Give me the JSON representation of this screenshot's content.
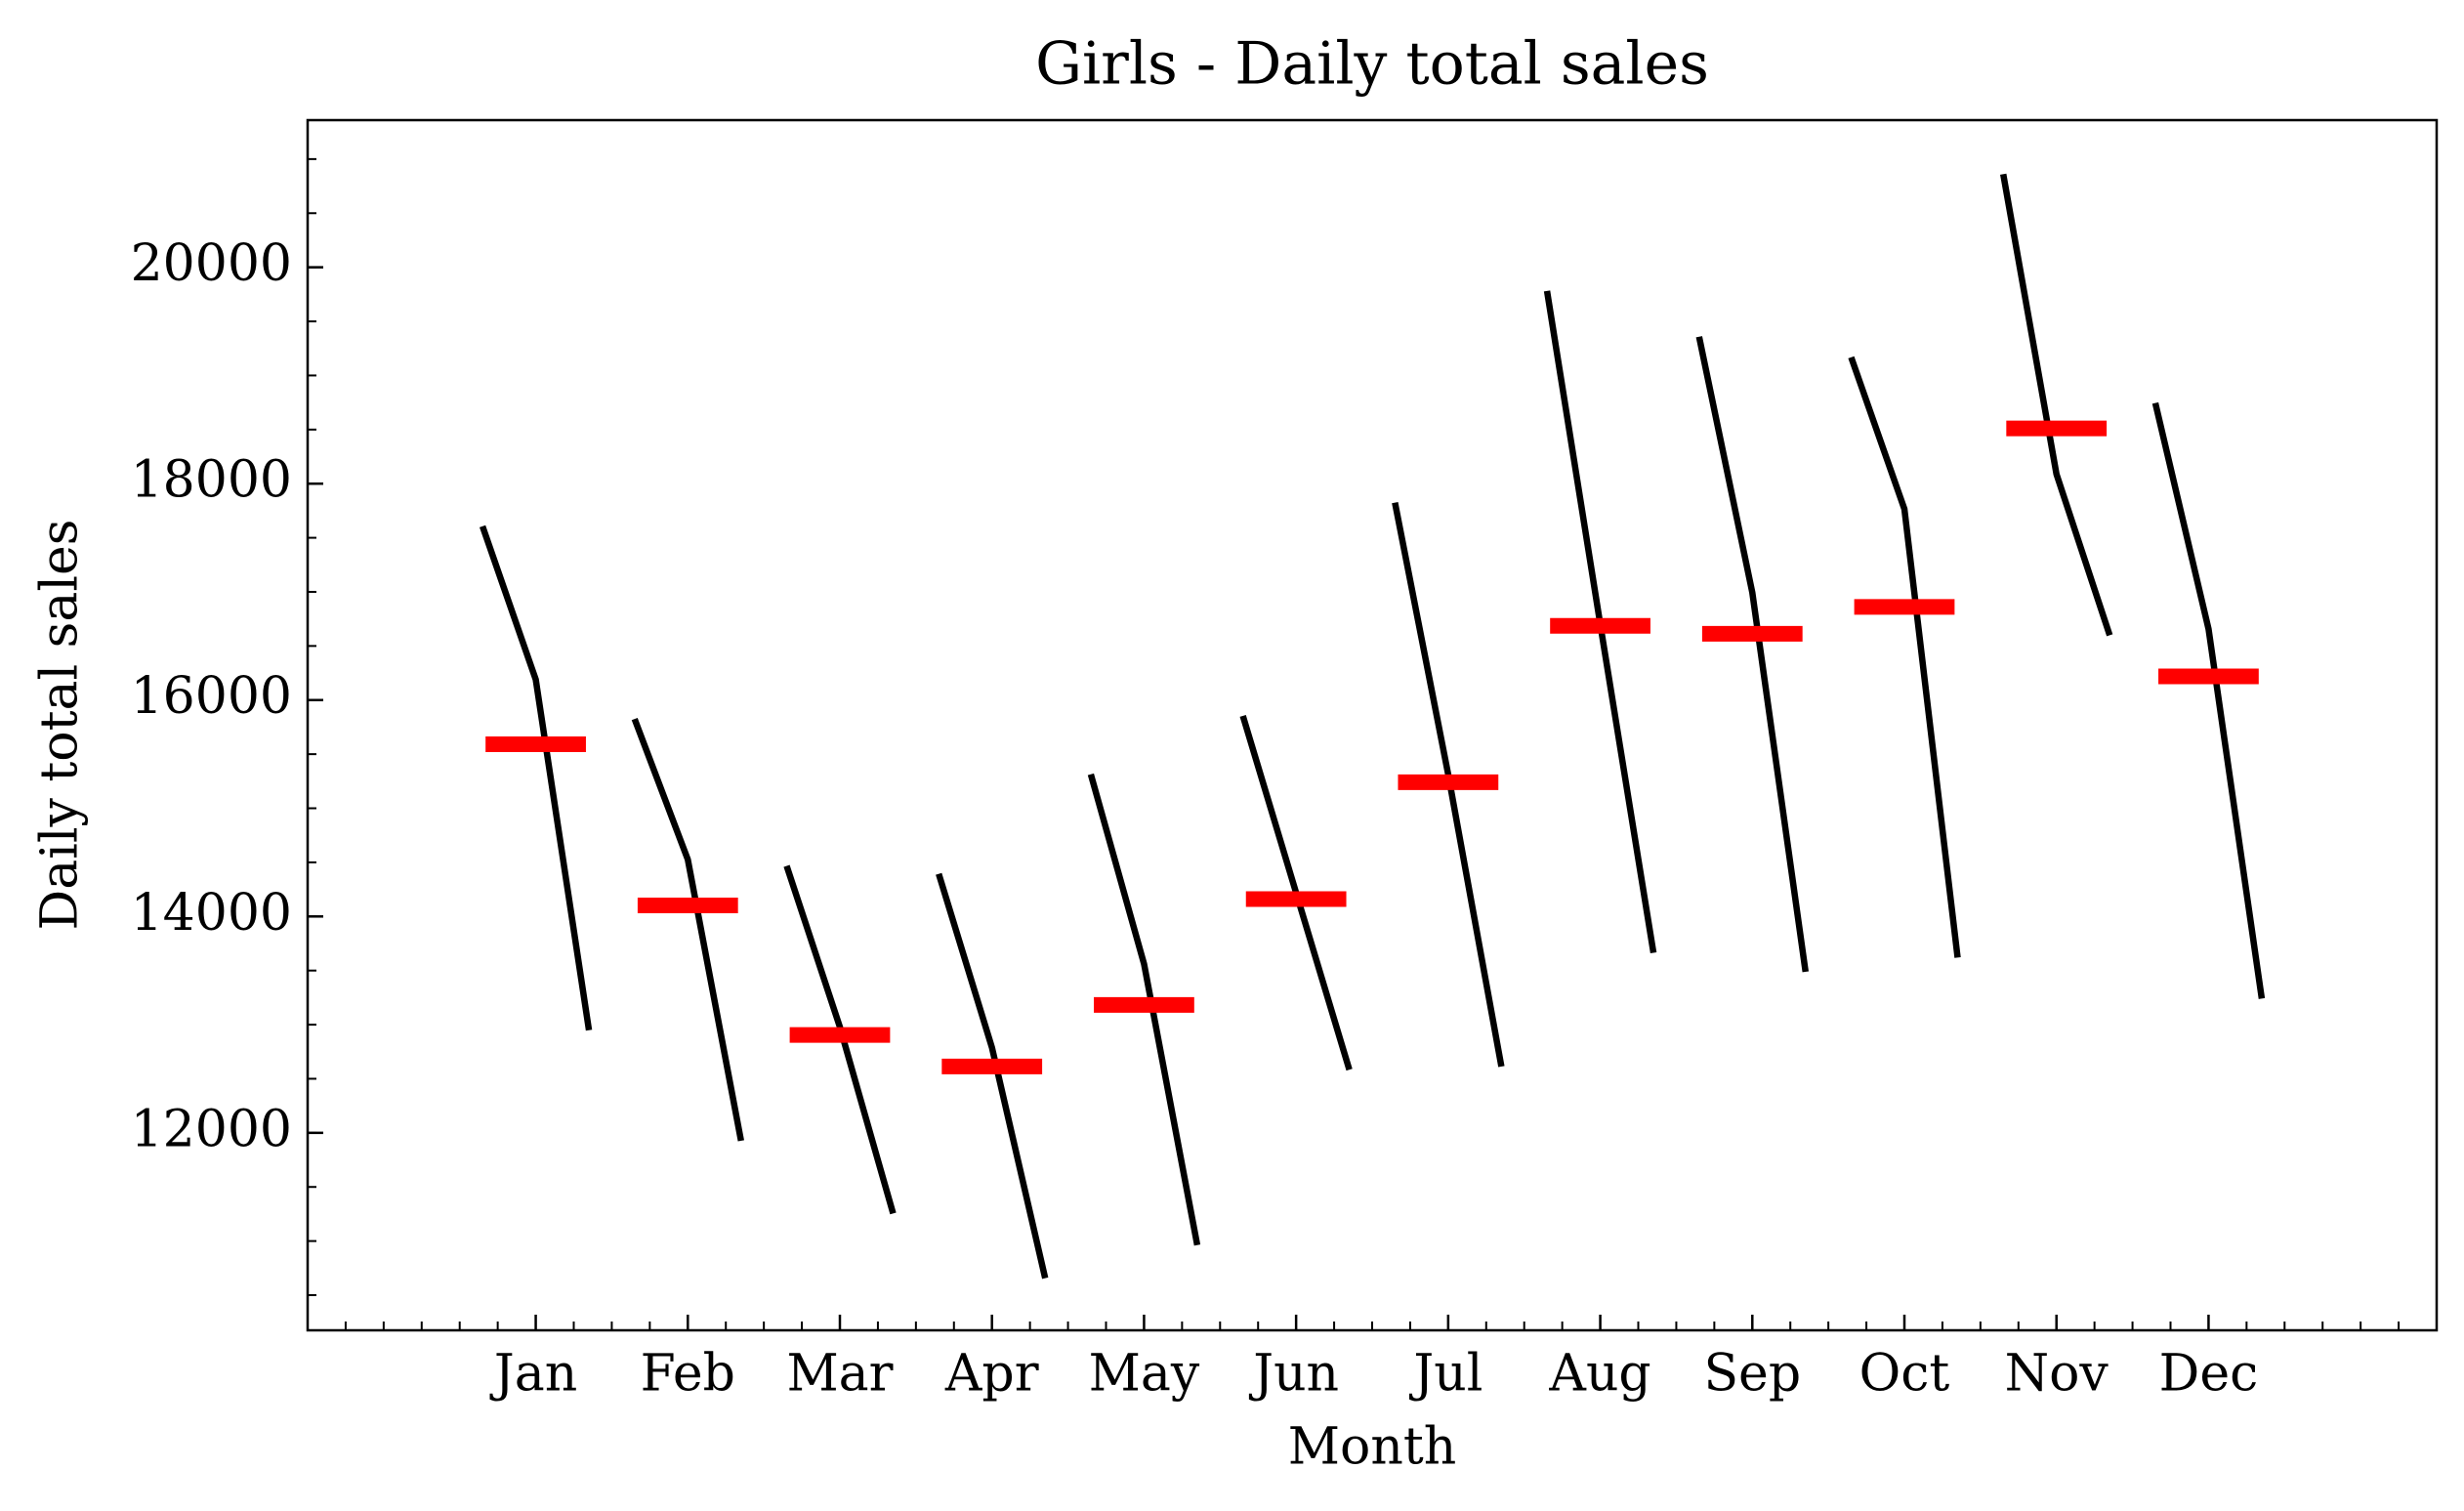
{
  "chart_data": {
    "type": "month_plot",
    "title": "Girls - Daily total sales",
    "x_label": "Month",
    "y_label": "Daily total sales",
    "categories": [
      "Jan",
      "Feb",
      "Mar",
      "Apr",
      "May",
      "Jun",
      "Jul",
      "Aug",
      "Sep",
      "Oct",
      "Nov",
      "Dec"
    ],
    "values": [
      [
        17606,
        16190,
        12949
      ],
      [
        15825,
        14526,
        11927
      ],
      [
        14467,
        12978,
        11255
      ],
      [
        14394,
        12788,
        10657
      ],
      [
        15314,
        13562,
        10963
      ],
      [
        15854,
        14219,
        12584
      ],
      [
        17825,
        15314,
        12613
      ],
      [
        19781,
        16701,
        13664
      ],
      [
        19358,
        16993,
        13489
      ],
      [
        19168,
        17766,
        13620
      ],
      [
        20861,
        18088,
        16599
      ],
      [
        18745,
        16657,
        13241
      ]
    ],
    "means": [
      15591,
      14102,
      12905,
      12613,
      13182,
      14161,
      15241,
      16686,
      16613,
      16861,
      18511,
      16219
    ],
    "color": "#000000",
    "mean_color": "#ff0000",
    "xlim": [
      -1.5,
      12.5
    ],
    "ylim": [
      10175,
      21360
    ],
    "yticks": [
      12000,
      14000,
      16000,
      18000,
      20000
    ],
    "xminor_step": 0.25,
    "yminor_step": 500
  }
}
